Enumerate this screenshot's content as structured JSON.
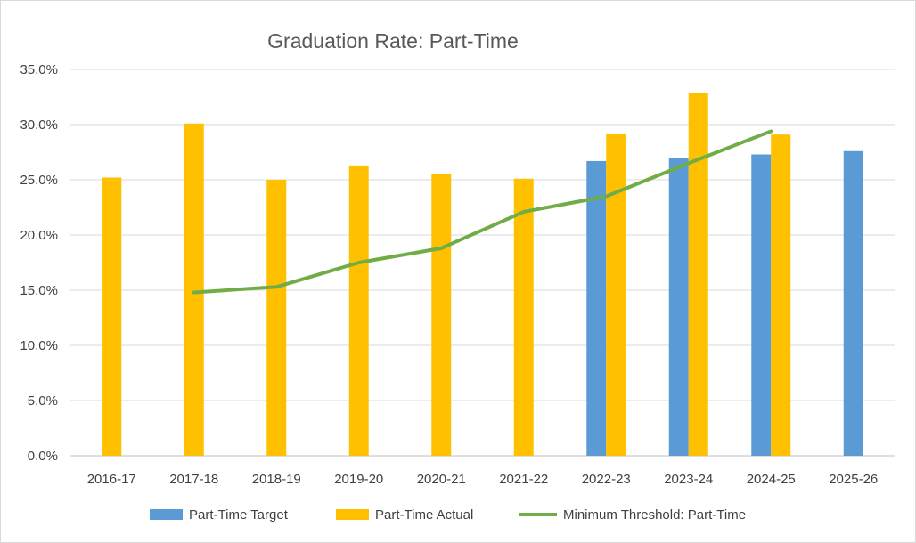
{
  "chart_data": {
    "type": "bar",
    "title": "Graduation Rate: Part-Time",
    "xlabel": "",
    "ylabel": "",
    "categories": [
      "2016-17",
      "2017-18",
      "2018-19",
      "2019-20",
      "2020-21",
      "2021-22",
      "2022-23",
      "2023-24",
      "2024-25",
      "2025-26"
    ],
    "ylim": [
      0,
      0.35
    ],
    "yticks": [
      0,
      0.05,
      0.1,
      0.15,
      0.2,
      0.25,
      0.3,
      0.35
    ],
    "ytick_labels": [
      "0.0%",
      "5.0%",
      "10.0%",
      "15.0%",
      "20.0%",
      "25.0%",
      "30.0%",
      "35.0%"
    ],
    "grid": true,
    "legend_position": "bottom",
    "series": [
      {
        "name": "Part-Time Target",
        "type": "bar",
        "color": "#5b9bd5",
        "values": [
          null,
          null,
          null,
          null,
          null,
          null,
          0.267,
          0.27,
          0.273,
          0.276
        ]
      },
      {
        "name": "Part-Time Actual",
        "type": "bar",
        "color": "#ffc000",
        "values": [
          0.252,
          0.301,
          0.25,
          0.263,
          0.255,
          0.251,
          0.292,
          0.329,
          0.291,
          null
        ]
      },
      {
        "name": "Minimum Threshold: Part-Time",
        "type": "line",
        "color": "#70ad47",
        "values": [
          null,
          0.148,
          0.153,
          0.175,
          0.188,
          0.221,
          0.235,
          0.265,
          0.294,
          null
        ]
      }
    ]
  }
}
